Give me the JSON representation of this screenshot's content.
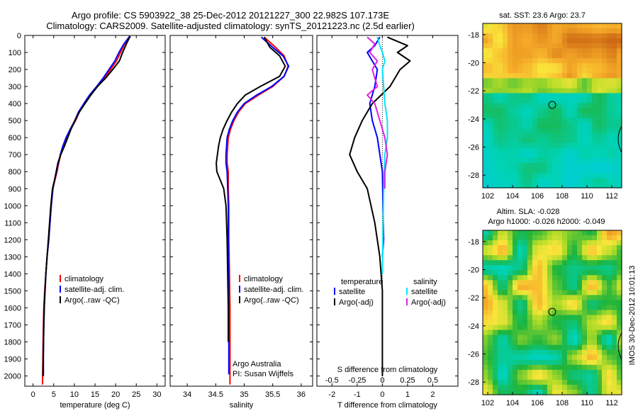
{
  "header": {
    "line1": "Argo profile: CS 5903922_38 25-Dec-2012 20121227_300 22.982S 107.173E",
    "line2": "Climatology: CARS2009. Satellite-adjusted climatology: synTS_20121223.nc (2.5d earlier)"
  },
  "side_label": "IMOS 30-Dec-2012 10:01:13",
  "colors": {
    "climatology": "#ff0000",
    "satellite": "#0000ff",
    "argo": "#000000",
    "sal_satellite": "#00e5ff",
    "sal_argo": "#e020e0"
  },
  "chart_data": [
    {
      "type": "line",
      "xlabel": "temperature (deg C)",
      "ylabel": "",
      "xlim": [
        -2,
        32
      ],
      "ylim": [
        2060,
        0
      ],
      "y_inverted": true,
      "xticks": [
        0,
        5,
        10,
        15,
        20,
        25,
        30
      ],
      "yticks": [
        0,
        100,
        200,
        300,
        400,
        500,
        600,
        700,
        800,
        900,
        1000,
        1100,
        1200,
        1300,
        1400,
        1500,
        1600,
        1700,
        1800,
        1900,
        2000
      ],
      "legend": {
        "placement": "lower-middle",
        "entries": [
          "climatology",
          "satellite-adj. clim.",
          "Argo(..raw -QC)"
        ]
      },
      "series": [
        {
          "name": "climatology",
          "color": "#ff0000",
          "x": [
            23.6,
            22.2,
            21.2,
            20.2,
            18.8,
            17.3,
            15.5,
            13.8,
            12.5,
            11.2,
            10.3,
            9.1,
            8.1,
            7.3,
            6.7,
            6.2,
            5.8,
            5.3,
            4.8,
            4.4,
            4.1,
            3.8,
            3.4,
            3.1,
            2.8,
            2.6,
            2.5,
            2.4,
            2.3
          ],
          "y": [
            5,
            50,
            100,
            150,
            200,
            250,
            300,
            350,
            400,
            450,
            500,
            550,
            600,
            650,
            700,
            750,
            800,
            850,
            900,
            1000,
            1100,
            1200,
            1300,
            1400,
            1500,
            1600,
            1700,
            1850,
            2050
          ]
        },
        {
          "name": "satellite-adj. clim.",
          "color": "#0000ff",
          "x": [
            23.4,
            22.0,
            20.8,
            19.8,
            18.4,
            17.0,
            15.4,
            13.7,
            12.3,
            11.0,
            10.1,
            9.0,
            8.0,
            7.2,
            6.6,
            6.1,
            5.7,
            5.2,
            4.8,
            4.4,
            4.1,
            3.8,
            3.4,
            3.1,
            2.9,
            2.7,
            2.6,
            2.5,
            2.5
          ],
          "y": [
            5,
            50,
            100,
            150,
            200,
            250,
            300,
            350,
            400,
            450,
            500,
            550,
            600,
            650,
            700,
            750,
            800,
            850,
            900,
            1000,
            1100,
            1200,
            1300,
            1400,
            1500,
            1600,
            1700,
            1850,
            2000
          ]
        },
        {
          "name": "Argo(..raw -QC)",
          "color": "#000000",
          "x": [
            23.5,
            22.6,
            21.7,
            20.9,
            19.3,
            17.6,
            15.6,
            14.0,
            12.6,
            11.2,
            10.2,
            9.2,
            8.4,
            7.6,
            6.7,
            6.0,
            5.6,
            5.2,
            4.7,
            4.3,
            4.0,
            3.7,
            3.4,
            3.1,
            2.9,
            2.7,
            2.6,
            2.5,
            2.4
          ],
          "y": [
            5,
            50,
            100,
            150,
            200,
            250,
            300,
            350,
            400,
            450,
            500,
            550,
            600,
            650,
            700,
            750,
            800,
            850,
            900,
            1000,
            1100,
            1200,
            1300,
            1400,
            1500,
            1600,
            1700,
            1850,
            2000
          ]
        }
      ]
    },
    {
      "type": "line",
      "xlabel": "salinity",
      "ylabel": "",
      "xlim": [
        33.7,
        36.2
      ],
      "ylim": [
        2060,
        0
      ],
      "y_inverted": true,
      "xticks": [
        34,
        34.5,
        35,
        35.5,
        36
      ],
      "legend": {
        "placement": "lower-right",
        "entries": [
          "climatology",
          "satellite-adj. clim.",
          "Argo(..raw -QC)"
        ]
      },
      "annotations": [
        "Argo Australia",
        "PI: Susan Wijffels"
      ],
      "series": [
        {
          "name": "climatology",
          "color": "#ff0000",
          "x": [
            35.35,
            35.55,
            35.7,
            35.77,
            35.7,
            35.5,
            35.25,
            35.02,
            34.9,
            34.82,
            34.76,
            34.72,
            34.7,
            34.7,
            34.72,
            34.72,
            34.73,
            34.73,
            34.74,
            34.75,
            34.75,
            34.75
          ],
          "y": [
            10,
            70,
            120,
            180,
            240,
            300,
            350,
            400,
            450,
            500,
            550,
            600,
            700,
            750,
            800,
            900,
            1000,
            1200,
            1400,
            1600,
            1800,
            2050
          ]
        },
        {
          "name": "satellite-adj. clim.",
          "color": "#0000ff",
          "x": [
            35.3,
            35.5,
            35.68,
            35.78,
            35.7,
            35.48,
            35.22,
            35.0,
            34.88,
            34.8,
            34.74,
            34.7,
            34.68,
            34.68,
            34.7,
            34.71,
            34.72,
            34.72,
            34.73,
            34.73,
            34.73,
            34.73
          ],
          "y": [
            10,
            70,
            120,
            180,
            240,
            300,
            350,
            400,
            450,
            500,
            550,
            600,
            700,
            750,
            800,
            900,
            1000,
            1200,
            1400,
            1600,
            1800,
            1990
          ]
        },
        {
          "name": "Argo(..raw -QC)",
          "color": "#000000",
          "x": [
            35.35,
            35.45,
            35.62,
            35.72,
            35.62,
            35.28,
            35.02,
            34.88,
            34.78,
            34.7,
            34.63,
            34.58,
            34.55,
            34.51,
            34.52,
            34.58,
            34.64,
            34.68,
            34.7,
            34.71,
            34.72,
            34.72
          ],
          "y": [
            10,
            70,
            120,
            180,
            240,
            300,
            350,
            400,
            450,
            500,
            550,
            600,
            650,
            750,
            800,
            850,
            900,
            1000,
            1200,
            1400,
            1600,
            1800
          ]
        }
      ]
    },
    {
      "type": "line",
      "xlabel": "T difference from climatology",
      "xlabel2": "S difference from climatology",
      "xlim": [
        -2.6,
        3.0
      ],
      "ylim": [
        2060,
        0
      ],
      "y_inverted": true,
      "xticks": [
        -2,
        -1,
        0,
        1,
        2
      ],
      "xticks_s": [
        "-0.5",
        "-0.25",
        "0",
        "0.25",
        "0.5"
      ],
      "legend": {
        "placement": "lower-middle",
        "groups": [
          "temperature",
          "salinity"
        ],
        "entries": [
          "satellite",
          "Argo(-adj)",
          "satellite",
          "Argo(-adj)"
        ]
      },
      "series": [
        {
          "name": "satellite",
          "group": "temperature",
          "color": "#0000ff",
          "x": [
            -0.1,
            -0.3,
            -0.6,
            -0.4,
            -0.2,
            -0.3,
            -0.5,
            -0.4,
            -0.2,
            0.0,
            0.05,
            0.0
          ],
          "y": [
            10,
            60,
            100,
            150,
            200,
            300,
            400,
            500,
            600,
            800,
            1200,
            1300
          ]
        },
        {
          "name": "Argo(-adj)",
          "group": "temperature",
          "color": "#000000",
          "x": [
            0.2,
            1.0,
            0.6,
            1.1,
            0.7,
            0.3,
            -0.4,
            -0.8,
            -1.1,
            -1.3,
            -1.0,
            -0.6,
            -0.3,
            -0.1,
            0.0,
            0.0,
            0.0
          ],
          "y": [
            10,
            60,
            100,
            150,
            200,
            300,
            400,
            500,
            600,
            700,
            800,
            900,
            1100,
            1300,
            1500,
            1800,
            2000
          ]
        },
        {
          "name": "satellite",
          "group": "salinity",
          "color": "#00e5ff",
          "x": [
            -0.2,
            -0.1,
            0.0,
            0.1,
            0.0,
            0.05,
            0.1,
            0.2,
            0.2,
            0.1,
            0.05,
            0.0
          ],
          "y": [
            10,
            60,
            100,
            150,
            200,
            300,
            400,
            500,
            600,
            700,
            900,
            1400
          ]
        },
        {
          "name": "Argo(-adj)",
          "group": "salinity",
          "color": "#e020e0",
          "x": [
            -0.6,
            -0.3,
            -0.5,
            -0.2,
            -0.4,
            -0.3,
            -0.2,
            -0.6,
            -0.3,
            -0.1,
            0.1,
            0.2,
            0.1,
            0.1
          ],
          "y": [
            10,
            50,
            100,
            150,
            200,
            250,
            300,
            350,
            400,
            500,
            600,
            700,
            800,
            900
          ]
        }
      ]
    },
    {
      "type": "heatmap",
      "title": "sat. SST: 23.6 Argo: 23.7",
      "xlim": [
        101.6,
        112.8
      ],
      "ylim": [
        -28.9,
        -17.2
      ],
      "xticks": [
        102,
        104,
        106,
        108,
        110,
        112
      ],
      "yticks": [
        -18,
        -20,
        -22,
        -24,
        -26,
        -28
      ],
      "marker": {
        "x": 107.2,
        "y": -23.0
      },
      "grid": false
    },
    {
      "type": "heatmap",
      "title": "Altim. SLA: -0.028",
      "subtitle": "Argo h1000: -0.026 h2000: -0.049",
      "xlim": [
        101.6,
        112.8
      ],
      "ylim": [
        -28.9,
        -17.2
      ],
      "xticks": [
        102,
        104,
        106,
        108,
        110,
        112
      ],
      "yticks": [
        -18,
        -20,
        -22,
        -24,
        -26,
        -28
      ],
      "marker": {
        "x": 107.2,
        "y": -23.0
      },
      "grid": false
    }
  ]
}
